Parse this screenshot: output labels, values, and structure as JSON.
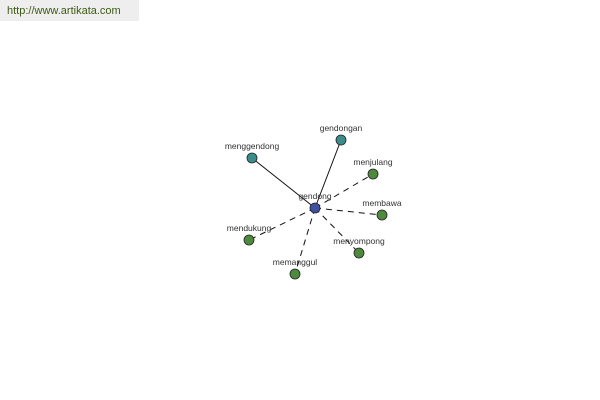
{
  "site_url": "http://www.artikata.com",
  "graph": {
    "center": {
      "label": "gendong",
      "color": "#3f4fa3"
    },
    "nodes": [
      {
        "label": "gendongan",
        "relation": "solid",
        "color": "#3c8c8c"
      },
      {
        "label": "menggendong",
        "relation": "solid",
        "color": "#3c8c8c"
      },
      {
        "label": "menjulang",
        "relation": "dashed",
        "color": "#4d8a3d"
      },
      {
        "label": "membawa",
        "relation": "dashed",
        "color": "#4d8a3d"
      },
      {
        "label": "menyompong",
        "relation": "dashed",
        "color": "#4d8a3d"
      },
      {
        "label": "memanggul",
        "relation": "dashed",
        "color": "#4d8a3d"
      },
      {
        "label": "mendukung",
        "relation": "dashed",
        "color": "#4d8a3d"
      }
    ]
  }
}
